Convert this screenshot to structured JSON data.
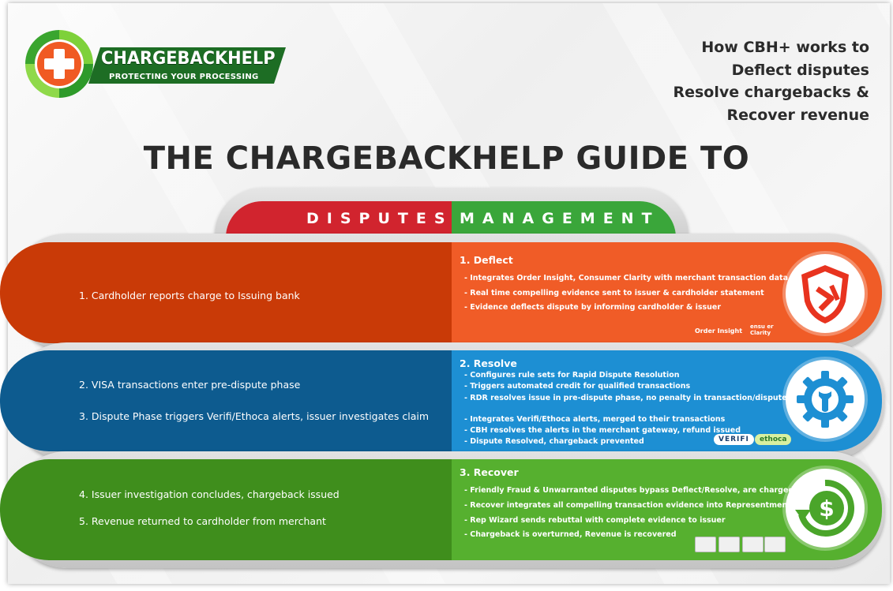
{
  "logo": {
    "name": "CHARGEBACKHELP",
    "tagline": "PROTECTING YOUR PROCESSING"
  },
  "headline": {
    "lines": [
      "How CBH+ works to",
      "Deflect disputes",
      "Resolve chargebacks &",
      "Recover revenue"
    ]
  },
  "title": "THE CHARGEBACKHELP GUIDE TO",
  "banner": {
    "left": "DISPUTES",
    "right": "MANAGEMENT",
    "left_color": "#d1242e",
    "right_color": "#3aa63a"
  },
  "rows": {
    "deflect": {
      "left_color": "#c93a07",
      "right_color": "#f05c27",
      "left_items": [
        "1. Cardholder reports charge to Issuing bank"
      ],
      "title": "1. Deflect",
      "bullets": [
        "- Integrates Order Insight, Consumer Clarity with merchant transaction data",
        "- Real time compelling evidence sent to issuer & cardholder statement",
        "- Evidence deflects dispute by informing cardholder & issuer"
      ],
      "icon": "shield-arrow-icon",
      "partners": [
        "Order Insight",
        "ensu er Clarity"
      ]
    },
    "resolve": {
      "left_color": "#0d5b8f",
      "right_color": "#1d8fd3",
      "left_items": [
        "2. VISA transactions enter pre-dispute phase",
        "3. Dispute Phase triggers Verifi/Ethoca alerts, issuer investigates claim"
      ],
      "title": "2. Resolve",
      "bullets": [
        "- Configures rule sets for Rapid Dispute Resolution",
        "- Triggers automated credit for qualified transactions",
        "- RDR resolves issue in pre-dispute phase, no penalty in transaction/dispute ratio",
        "- Integrates Verifi/Ethoca alerts, merged to their transactions",
        "- CBH resolves the alerts in the merchant gateway, refund issued",
        "- Dispute Resolved, chargeback prevented"
      ],
      "icon": "gear-wrench-icon",
      "partners": [
        "VERIFI",
        "ethoca"
      ]
    },
    "recover": {
      "left_color": "#3f8e1c",
      "right_color": "#56b02f",
      "left_items": [
        "4. Issuer investigation concludes, chargeback issued",
        "5. Revenue returned to cardholder from merchant"
      ],
      "title": "3. Recover",
      "bullets": [
        "- Friendly Fraud & Unwarranted disputes bypass Deflect/Resolve, are charged back",
        "- Recover integrates all compelling transaction evidence into Representment Wizard",
        "- Rep Wizard sends rebuttal with complete evidence to issuer",
        "- Chargeback is overturned, Revenue is recovered"
      ],
      "icon": "dollar-recycle-icon"
    }
  }
}
